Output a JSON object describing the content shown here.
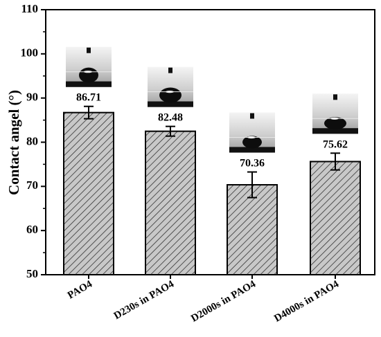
{
  "chart_data": {
    "type": "bar",
    "categories": [
      "PAO4",
      "D230s in PAO4",
      "D2000s in PAO4",
      "D4000s in PAO4"
    ],
    "values": [
      86.71,
      82.48,
      70.36,
      75.62
    ],
    "errors": [
      1.4,
      1.1,
      2.9,
      1.9
    ],
    "value_labels": [
      "86.71",
      "82.48",
      "70.36",
      "75.62"
    ],
    "title": "",
    "xlabel": "",
    "ylabel": "Contact angel (°)",
    "ylim": [
      50,
      110
    ],
    "yticks": [
      50,
      60,
      70,
      80,
      90,
      100,
      110
    ],
    "grid": false,
    "legend": "none",
    "bar_fill": "#c8c8c8",
    "bar_pattern": "diagonal-hatch",
    "insets": [
      "droplet-image",
      "droplet-image",
      "droplet-image",
      "droplet-image"
    ]
  }
}
